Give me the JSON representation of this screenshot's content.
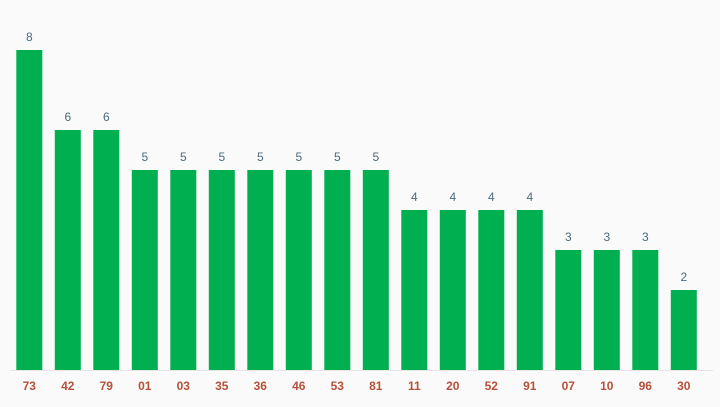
{
  "chart_data": {
    "type": "bar",
    "categories": [
      "73",
      "42",
      "79",
      "01",
      "03",
      "35",
      "36",
      "46",
      "53",
      "81",
      "11",
      "20",
      "52",
      "91",
      "07",
      "10",
      "96",
      "30"
    ],
    "values": [
      8,
      6,
      6,
      5,
      5,
      5,
      5,
      5,
      5,
      5,
      4,
      4,
      4,
      4,
      3,
      3,
      3,
      2
    ],
    "title": "",
    "xlabel": "",
    "ylabel": "",
    "ylim": [
      0,
      8
    ],
    "grid": false,
    "legend": "none",
    "colors": {
      "bar": "#00b050",
      "value_label": "#4a6b7c",
      "tick_label": "#b5503a",
      "background": "#fafafa"
    }
  }
}
